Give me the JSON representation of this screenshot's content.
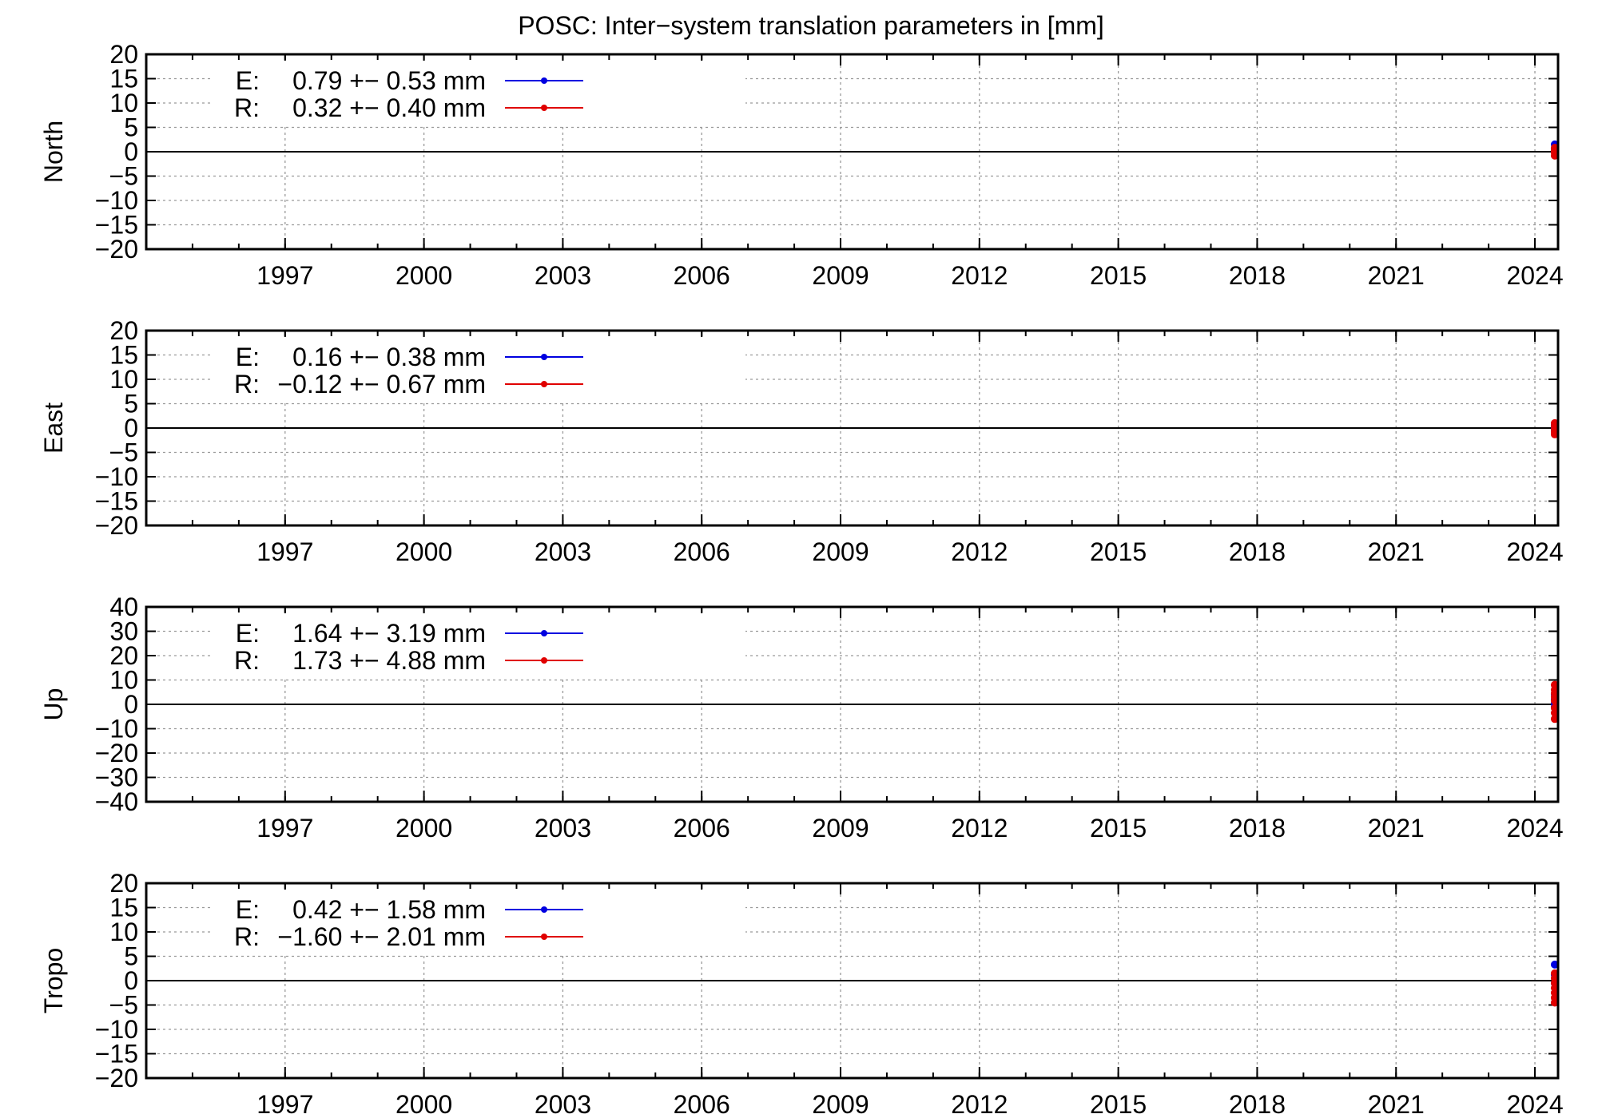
{
  "title": "POSC: Inter−system translation parameters in [mm]",
  "colors": {
    "E": "#0000e0",
    "R": "#e00000"
  },
  "chart_data": [
    {
      "type": "scatter",
      "ylabel": "North",
      "xlim": [
        1994.0,
        2024.5
      ],
      "ylim": [
        -20,
        20
      ],
      "yticks": [
        20,
        15,
        10,
        5,
        0,
        -5,
        -10,
        -15,
        -20
      ],
      "ytick_labels": [
        "20",
        "15",
        "10",
        "5",
        "0",
        "−5",
        "−10",
        "−15",
        "−20"
      ],
      "xticks": [
        1997,
        2000,
        2003,
        2006,
        2009,
        2012,
        2015,
        2018,
        2021,
        2024
      ],
      "xtick_labels": [
        "1997",
        "2000",
        "2003",
        "2006",
        "2009",
        "2012",
        "2015",
        "2018",
        "2021",
        "2024"
      ],
      "legend": [
        {
          "key": "E:",
          "text": "0.79 +− 0.53 mm",
          "color": "#0000e0"
        },
        {
          "key": "R:",
          "text": "0.32 +− 0.40 mm",
          "color": "#e00000"
        }
      ],
      "series": [
        {
          "name": "E",
          "color": "#0000e0",
          "x": [
            2024.43,
            2024.43,
            2024.43
          ],
          "y": [
            1.5,
            0.8,
            0.3
          ]
        },
        {
          "name": "R",
          "color": "#e00000",
          "x": [
            2024.43,
            2024.43,
            2024.43,
            2024.43
          ],
          "y": [
            0.8,
            0.2,
            -0.2,
            -0.8
          ]
        }
      ]
    },
    {
      "type": "scatter",
      "ylabel": "East",
      "xlim": [
        1994.0,
        2024.5
      ],
      "ylim": [
        -20,
        20
      ],
      "yticks": [
        20,
        15,
        10,
        5,
        0,
        -5,
        -10,
        -15,
        -20
      ],
      "ytick_labels": [
        "20",
        "15",
        "10",
        "5",
        "0",
        "−5",
        "−10",
        "−15",
        "−20"
      ],
      "xticks": [
        1997,
        2000,
        2003,
        2006,
        2009,
        2012,
        2015,
        2018,
        2021,
        2024
      ],
      "xtick_labels": [
        "1997",
        "2000",
        "2003",
        "2006",
        "2009",
        "2012",
        "2015",
        "2018",
        "2021",
        "2024"
      ],
      "legend": [
        {
          "key": "E:",
          "text": "0.16 +− 0.38 mm",
          "color": "#0000e0"
        },
        {
          "key": "R:",
          "text": "−0.12 +− 0.67 mm",
          "color": "#e00000"
        }
      ],
      "series": [
        {
          "name": "E",
          "color": "#0000e0",
          "x": [
            2024.43,
            2024.43,
            2024.43
          ],
          "y": [
            0.6,
            0.1,
            -0.3
          ]
        },
        {
          "name": "R",
          "color": "#e00000",
          "x": [
            2024.43,
            2024.43,
            2024.43,
            2024.43,
            2024.43
          ],
          "y": [
            1.0,
            0.4,
            -0.2,
            -0.8,
            -1.3
          ]
        }
      ]
    },
    {
      "type": "scatter",
      "ylabel": "Up",
      "xlim": [
        1994.0,
        2024.5
      ],
      "ylim": [
        -40,
        40
      ],
      "yticks": [
        40,
        30,
        20,
        10,
        0,
        -10,
        -20,
        -30,
        -40
      ],
      "ytick_labels": [
        "40",
        "30",
        "20",
        "10",
        "0",
        "−10",
        "−20",
        "−30",
        "−40"
      ],
      "xticks": [
        1997,
        2000,
        2003,
        2006,
        2009,
        2012,
        2015,
        2018,
        2021,
        2024
      ],
      "xtick_labels": [
        "1997",
        "2000",
        "2003",
        "2006",
        "2009",
        "2012",
        "2015",
        "2018",
        "2021",
        "2024"
      ],
      "legend": [
        {
          "key": "E:",
          "text": "1.64 +− 3.19 mm",
          "color": "#0000e0"
        },
        {
          "key": "R:",
          "text": "1.73 +− 4.88 mm",
          "color": "#e00000"
        }
      ],
      "series": [
        {
          "name": "E",
          "color": "#0000e0",
          "x": [
            2024.43,
            2024.43,
            2024.43,
            2024.43
          ],
          "y": [
            4.0,
            2.0,
            0.5,
            -1.0
          ]
        },
        {
          "name": "R",
          "color": "#e00000",
          "x": [
            2024.43,
            2024.43,
            2024.43,
            2024.43,
            2024.43,
            2024.43,
            2024.43,
            2024.43
          ],
          "y": [
            8.0,
            6.0,
            4.5,
            3.0,
            1.5,
            -1.5,
            -3.5,
            -6.0
          ]
        }
      ]
    },
    {
      "type": "scatter",
      "ylabel": "Tropo",
      "xlim": [
        1994.0,
        2024.5
      ],
      "ylim": [
        -20,
        20
      ],
      "yticks": [
        20,
        15,
        10,
        5,
        0,
        -5,
        -10,
        -15,
        -20
      ],
      "ytick_labels": [
        "20",
        "15",
        "10",
        "5",
        "0",
        "−5",
        "−10",
        "−15",
        "−20"
      ],
      "xticks": [
        1997,
        2000,
        2003,
        2006,
        2009,
        2012,
        2015,
        2018,
        2021,
        2024
      ],
      "xtick_labels": [
        "1997",
        "2000",
        "2003",
        "2006",
        "2009",
        "2012",
        "2015",
        "2018",
        "2021",
        "2024"
      ],
      "legend": [
        {
          "key": "E:",
          "text": "0.42 +− 1.58 mm",
          "color": "#0000e0"
        },
        {
          "key": "R:",
          "text": "−1.60 +− 2.01 mm",
          "color": "#e00000"
        }
      ],
      "series": [
        {
          "name": "E",
          "color": "#0000e0",
          "x": [
            2024.43,
            2024.43,
            2024.43
          ],
          "y": [
            3.3,
            1.2,
            -0.5
          ]
        },
        {
          "name": "R",
          "color": "#e00000",
          "x": [
            2024.43,
            2024.43,
            2024.43,
            2024.43,
            2024.43,
            2024.43,
            2024.43
          ],
          "y": [
            1.5,
            0.5,
            -0.5,
            -1.5,
            -2.5,
            -3.5,
            -4.5
          ]
        }
      ]
    }
  ]
}
